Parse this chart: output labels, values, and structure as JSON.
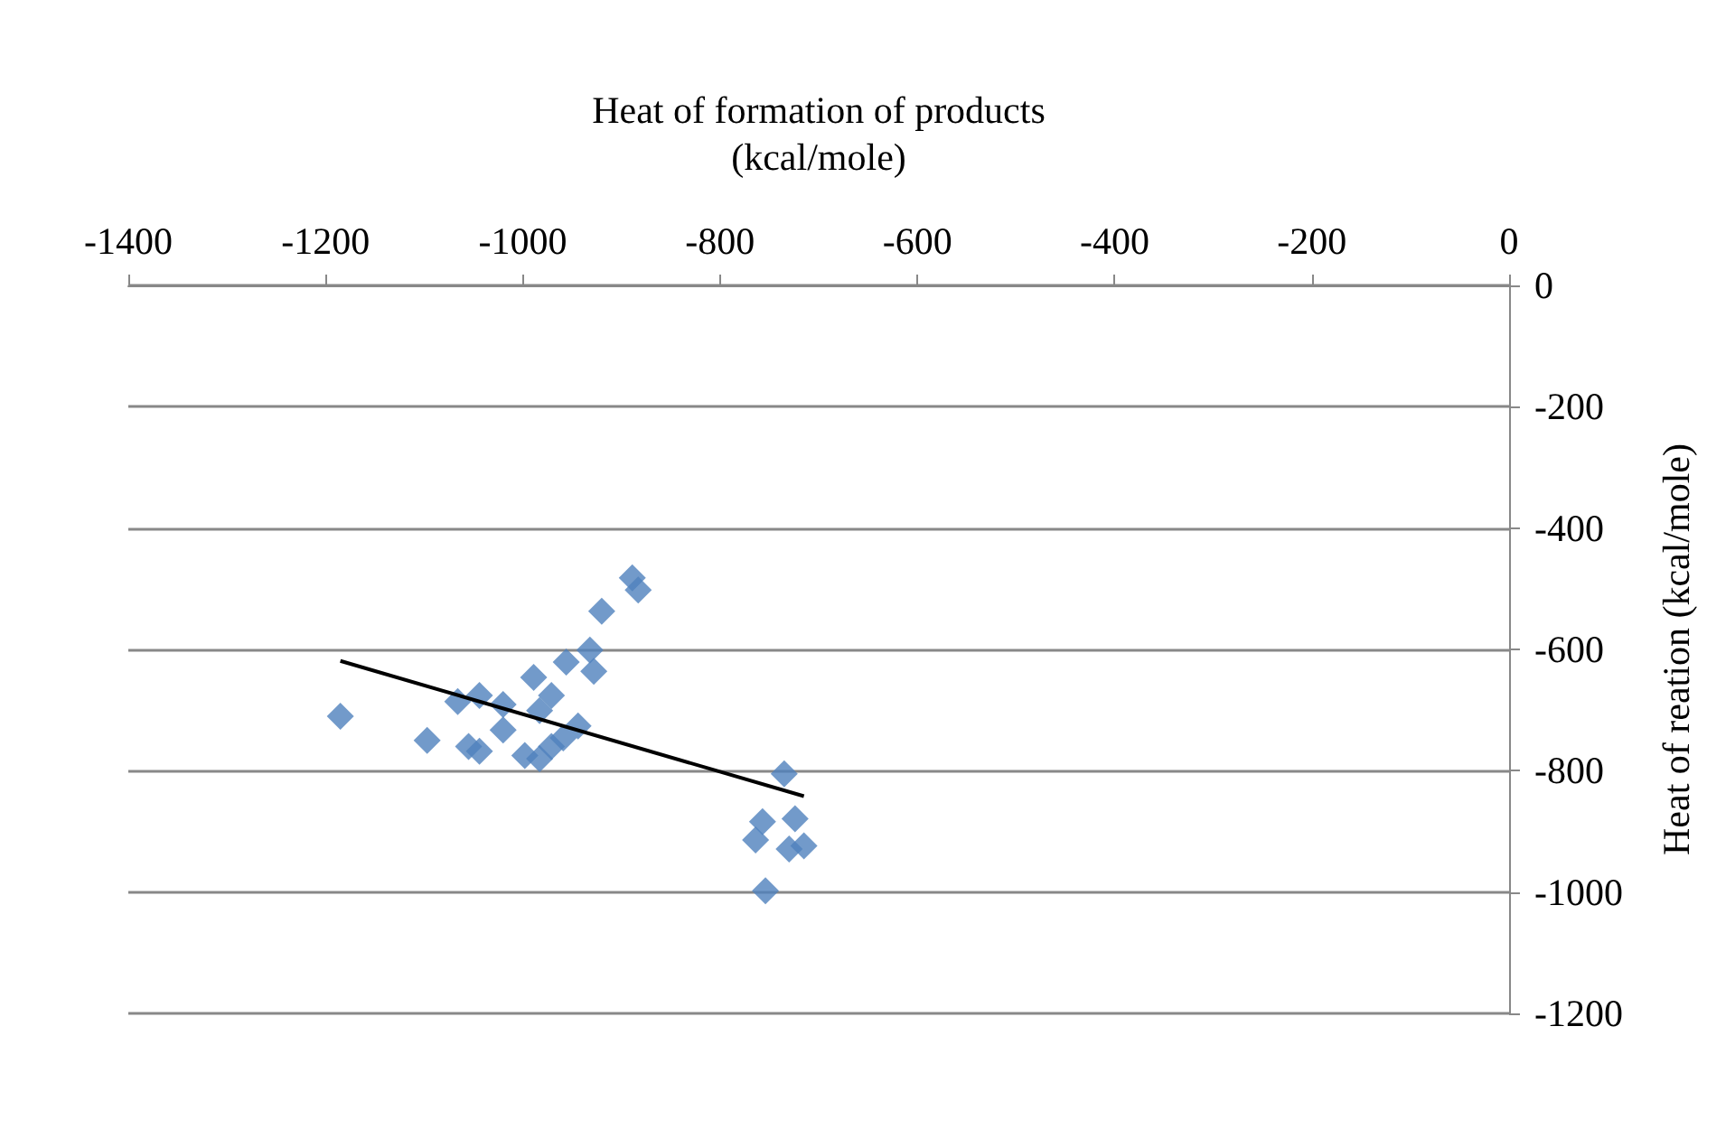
{
  "chart_data": {
    "type": "scatter",
    "xlabel": "Heat of formation of products\n(kcal/mole)",
    "ylabel": "Heat of reation (kcal/mole)",
    "xlim": [
      -1400,
      0
    ],
    "xticks": [
      -1400,
      -1200,
      -1000,
      -800,
      -600,
      -400,
      -200,
      0
    ],
    "ylim": [
      -1200,
      0
    ],
    "yticks": [
      -1200,
      -1000,
      -800,
      -600,
      -400,
      -200,
      0
    ],
    "grid": "y",
    "marker": "diamond",
    "series": [
      {
        "color": "#4f81bd",
        "x": [
          -1185,
          -1097,
          -1066,
          -1044,
          -1055,
          -1044,
          -1020,
          -1020,
          -989,
          -971,
          -983,
          -998,
          -983,
          -971,
          -959,
          -944,
          -956,
          -932,
          -928,
          -920,
          -889,
          -883,
          -735,
          -757,
          -764,
          -724,
          -730,
          -715,
          -754
        ],
        "values": [
          -710,
          -750,
          -686,
          -676,
          -760,
          -768,
          -691,
          -733,
          -646,
          -676,
          -701,
          -775,
          -780,
          -760,
          -746,
          -726,
          -621,
          -601,
          -636,
          -537,
          -482,
          -502,
          -805,
          -884,
          -914,
          -879,
          -929,
          -924,
          -998
        ]
      },
      {
        "type": "line",
        "color": "#000000",
        "marker": "none",
        "x": [
          -1185,
          -715
        ],
        "values": [
          -619,
          -842
        ]
      }
    ]
  }
}
